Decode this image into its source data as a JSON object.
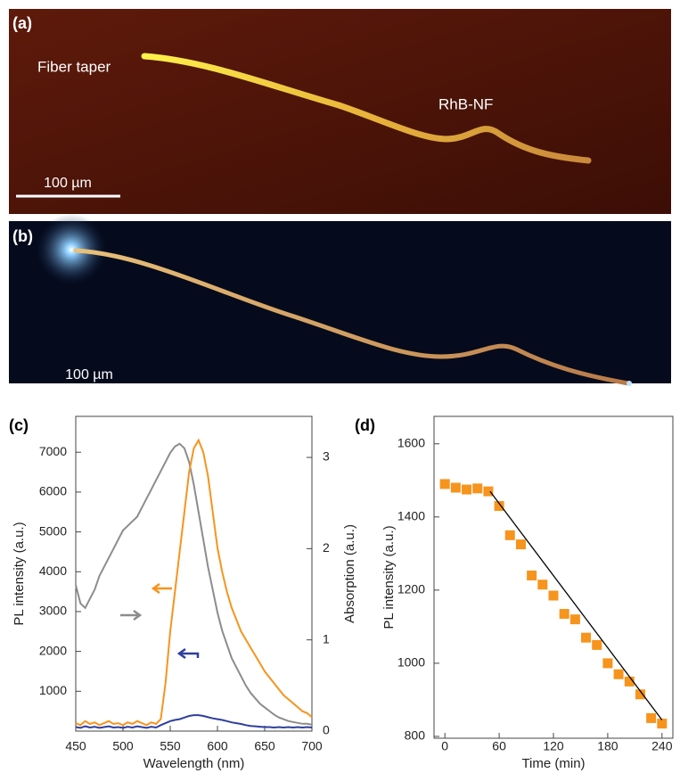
{
  "images": [
    {
      "label": "(a)",
      "annotations": [
        "Fiber taper",
        "RhB-NF"
      ],
      "scale_bar": "100 µm"
    },
    {
      "label": "(b)",
      "scale_bar": "100 µm"
    }
  ],
  "chart_data": [
    {
      "type": "line",
      "label": "(c)",
      "xlabel": "Wavelength (nm)",
      "ylabel": "PL intensity (a.u.)",
      "y2label": "Absorption (a.u.)",
      "xlim": [
        450,
        700
      ],
      "xticks": [
        450,
        500,
        550,
        600,
        650,
        700
      ],
      "ylim": [
        0,
        7900
      ],
      "yticks": [
        1000,
        2000,
        3000,
        4000,
        5000,
        6000,
        7000
      ],
      "y2lim": [
        0,
        3.45
      ],
      "y2ticks": [
        0,
        1,
        2,
        3
      ],
      "x": [
        450,
        455,
        460,
        465,
        470,
        475,
        480,
        485,
        490,
        495,
        500,
        505,
        510,
        515,
        520,
        525,
        530,
        535,
        540,
        545,
        550,
        555,
        560,
        565,
        570,
        575,
        580,
        585,
        590,
        595,
        600,
        605,
        610,
        615,
        620,
        625,
        630,
        635,
        640,
        645,
        650,
        655,
        660,
        665,
        670,
        675,
        680,
        685,
        690,
        695,
        700
      ],
      "series": [
        {
          "color": "#8c8c8c",
          "axis": "y2",
          "values": [
            1.6,
            1.4,
            1.35,
            1.45,
            1.55,
            1.7,
            1.8,
            1.9,
            2.0,
            2.1,
            2.2,
            2.25,
            2.3,
            2.35,
            2.45,
            2.55,
            2.65,
            2.75,
            2.85,
            2.95,
            3.05,
            3.12,
            3.15,
            3.1,
            2.95,
            2.7,
            2.4,
            2.1,
            1.8,
            1.55,
            1.3,
            1.1,
            0.95,
            0.8,
            0.7,
            0.6,
            0.5,
            0.42,
            0.36,
            0.3,
            0.26,
            0.22,
            0.18,
            0.15,
            0.13,
            0.11,
            0.1,
            0.09,
            0.08,
            0.08,
            0.07
          ]
        },
        {
          "color": "#f7941d",
          "values": [
            200,
            150,
            250,
            180,
            220,
            150,
            200,
            250,
            180,
            200,
            150,
            220,
            180,
            250,
            200,
            150,
            220,
            180,
            300,
            1200,
            2500,
            3500,
            4500,
            5500,
            6500,
            7100,
            7300,
            7000,
            6400,
            5500,
            4600,
            4000,
            3500,
            3100,
            2800,
            2500,
            2300,
            2100,
            1900,
            1700,
            1500,
            1350,
            1200,
            1050,
            900,
            800,
            700,
            600,
            500,
            450,
            350
          ]
        },
        {
          "color": "#2e3f9e",
          "values": [
            100,
            80,
            120,
            90,
            110,
            80,
            100,
            120,
            90,
            100,
            80,
            110,
            90,
            120,
            100,
            80,
            110,
            90,
            150,
            200,
            250,
            280,
            300,
            340,
            380,
            400,
            400,
            380,
            350,
            320,
            300,
            280,
            250,
            220,
            200,
            180,
            150,
            130,
            120,
            110,
            100,
            100,
            90,
            100,
            90,
            100,
            90,
            100,
            90,
            100,
            90
          ]
        }
      ]
    },
    {
      "type": "scatter",
      "label": "(d)",
      "xlabel": "Time (min)",
      "ylabel": "PL intensity (a.u.)",
      "xlim": [
        -12,
        252
      ],
      "xticks": [
        0,
        60,
        120,
        180,
        240
      ],
      "ylim": [
        795,
        1675
      ],
      "yticks": [
        800,
        1000,
        1200,
        1400,
        1600
      ],
      "series": [
        {
          "color": "#f7941d",
          "style": "markers",
          "x": [
            0,
            12,
            24,
            36,
            48,
            60,
            72,
            84,
            96,
            108,
            120,
            132,
            144,
            156,
            168,
            180,
            192,
            204,
            216,
            228,
            240
          ],
          "values": [
            1490,
            1480,
            1475,
            1478,
            1470,
            1430,
            1350,
            1325,
            1240,
            1215,
            1185,
            1135,
            1120,
            1070,
            1050,
            1000,
            970,
            950,
            915,
            850,
            835
          ]
        },
        {
          "color": "#000000",
          "style": "line",
          "x": [
            50,
            240
          ],
          "values": [
            1470,
            845
          ]
        }
      ]
    }
  ]
}
